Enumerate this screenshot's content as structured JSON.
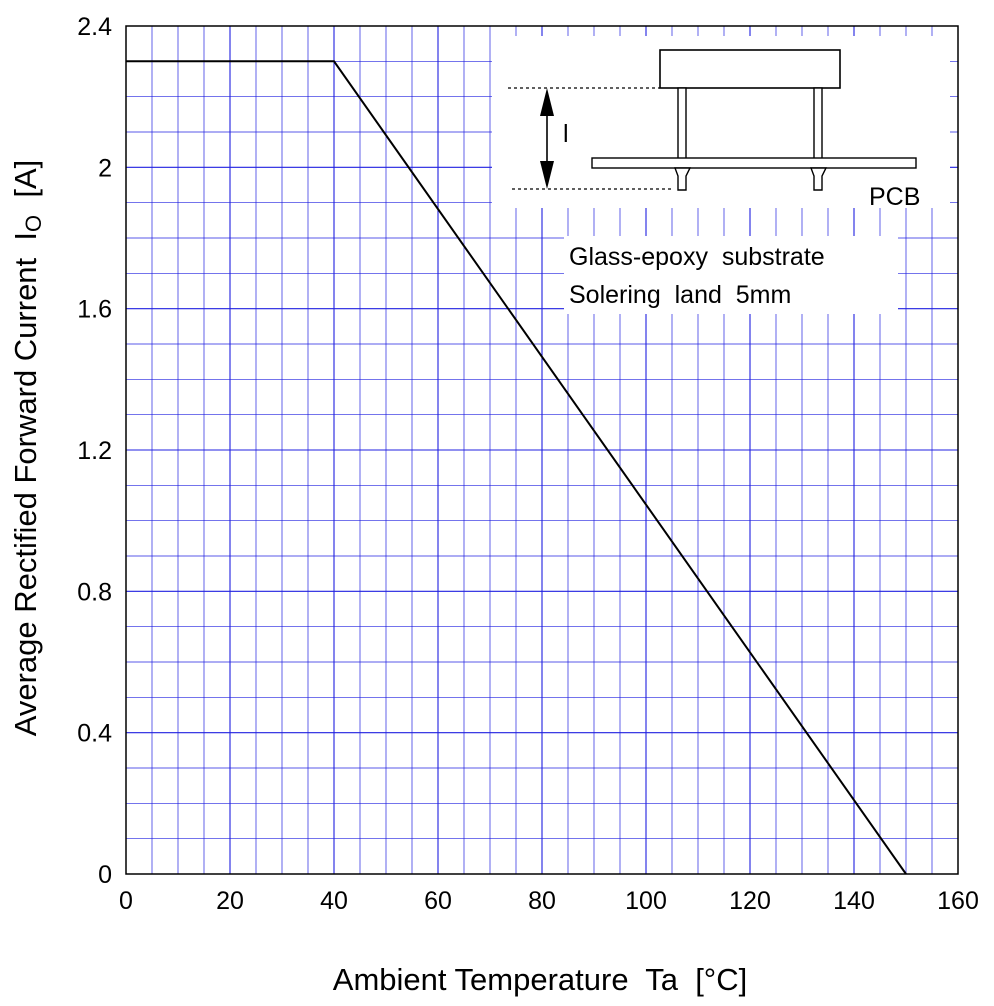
{
  "chart_data": {
    "type": "line",
    "title": "",
    "xlabel": "Ambient Temperature  Ta  [°C]",
    "ylabel_main": "Average Rectified Forward Current  I",
    "ylabel_sub": "O",
    "ylabel_unit": "  [A]",
    "xlim": [
      0,
      160
    ],
    "ylim": [
      0,
      2.4
    ],
    "x_ticks": [
      "0",
      "20",
      "40",
      "60",
      "80",
      "100",
      "120",
      "140",
      "160"
    ],
    "y_ticks": [
      "0",
      "0.4",
      "0.8",
      "1.2",
      "1.6",
      "2",
      "2.4"
    ],
    "grid": true,
    "grid_color": "#2020e0",
    "series": [
      {
        "x": [
          0,
          40,
          150
        ],
        "y": [
          2.3,
          2.3,
          0
        ],
        "color": "#000000"
      }
    ]
  },
  "inset": {
    "dimension_label": "l",
    "pcb_label": "PCB",
    "note_line1": "Glass-epoxy  substrate",
    "note_line2": "Solering  land  5mm"
  }
}
